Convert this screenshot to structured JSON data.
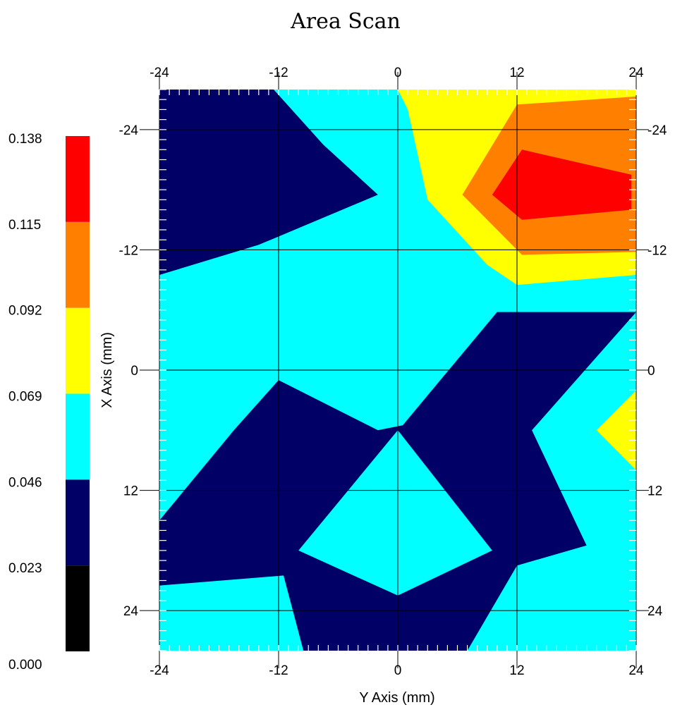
{
  "chart_data": {
    "type": "heatmap",
    "subtype": "filled-contour",
    "title": "Area Scan",
    "xlabel": "Y Axis (mm)",
    "ylabel": "X Axis (mm)",
    "x_range": [
      -24,
      24
    ],
    "y_range": [
      -28,
      28
    ],
    "y_axis_direction": "top-to-bottom increasing",
    "x_ticks": [
      "-24",
      "-12",
      "0",
      "12",
      "24"
    ],
    "x_tick_values": [
      -24,
      -12,
      0,
      12,
      24
    ],
    "y_ticks": [
      "-24",
      "-12",
      "0",
      "12",
      "24"
    ],
    "y_tick_values": [
      -24,
      -12,
      0,
      12,
      24
    ],
    "grid": true,
    "colorbar": {
      "placement": "left",
      "levels": [
        {
          "label": "0.023",
          "lower": 0.0,
          "upper": 0.023,
          "color": "#000000"
        },
        {
          "label": "0.046",
          "lower": 0.023,
          "upper": 0.046,
          "color": "#000066"
        },
        {
          "label": "0.069",
          "lower": 0.046,
          "upper": 0.069,
          "color": "#00ffff"
        },
        {
          "label": "0.092",
          "lower": 0.069,
          "upper": 0.092,
          "color": "#ffff00"
        },
        {
          "label": "0.115",
          "lower": 0.092,
          "upper": 0.115,
          "color": "#ff8000"
        },
        {
          "label": "0.138",
          "lower": 0.115,
          "upper": 0.138,
          "color": "#ff0000"
        }
      ],
      "bottom_label": "0.000"
    },
    "background_level_color": "#00ffff",
    "regions": [
      {
        "name": "top-left-low",
        "color": "#000066",
        "points": [
          [
            -24,
            -28
          ],
          [
            -12.5,
            -28
          ],
          [
            -7.5,
            -22.5
          ],
          [
            -2,
            -17.5
          ],
          [
            -14,
            -12.5
          ],
          [
            -24,
            -9.5
          ]
        ]
      },
      {
        "name": "top-right-mid",
        "color": "#ffff00",
        "points": [
          [
            0,
            -28
          ],
          [
            24,
            -28
          ],
          [
            24,
            -9.5
          ],
          [
            12,
            -8.5
          ],
          [
            9,
            -10.5
          ],
          [
            3,
            -17
          ],
          [
            1,
            -26
          ]
        ]
      },
      {
        "name": "top-right-high",
        "color": "#ff8000",
        "points": [
          [
            12,
            -26.5
          ],
          [
            24,
            -27.3
          ],
          [
            24,
            -11.8
          ],
          [
            12.5,
            -11.5
          ],
          [
            6.5,
            -17.5
          ]
        ]
      },
      {
        "name": "top-right-peak",
        "color": "#ff0000",
        "points": [
          [
            12.5,
            -22
          ],
          [
            23.5,
            -19.5
          ],
          [
            23.5,
            -16
          ],
          [
            12.5,
            -15
          ],
          [
            9.5,
            -17.5
          ]
        ]
      },
      {
        "name": "center-right-low",
        "color": "#000066",
        "points": [
          [
            10,
            -5.8
          ],
          [
            24,
            -5.8
          ],
          [
            13.5,
            6
          ],
          [
            19,
            17.5
          ],
          [
            12,
            19.5
          ],
          [
            7,
            28
          ],
          [
            0,
            28
          ],
          [
            -9.5,
            28
          ],
          [
            -11.5,
            20.5
          ],
          [
            -24,
            21.5
          ],
          [
            -24,
            15
          ],
          [
            -16.5,
            6
          ],
          [
            -12,
            1
          ],
          [
            -2,
            6
          ],
          [
            0.5,
            5.5
          ]
        ]
      },
      {
        "name": "bottom-center-hole",
        "color": "#00ffff",
        "points": [
          [
            0,
            6
          ],
          [
            9.5,
            18
          ],
          [
            0,
            22.5
          ],
          [
            -10,
            18
          ]
        ]
      },
      {
        "name": "right-edge-mid",
        "color": "#ffff00",
        "points": [
          [
            24,
            2
          ],
          [
            20,
            6
          ],
          [
            24,
            10
          ]
        ]
      }
    ]
  }
}
